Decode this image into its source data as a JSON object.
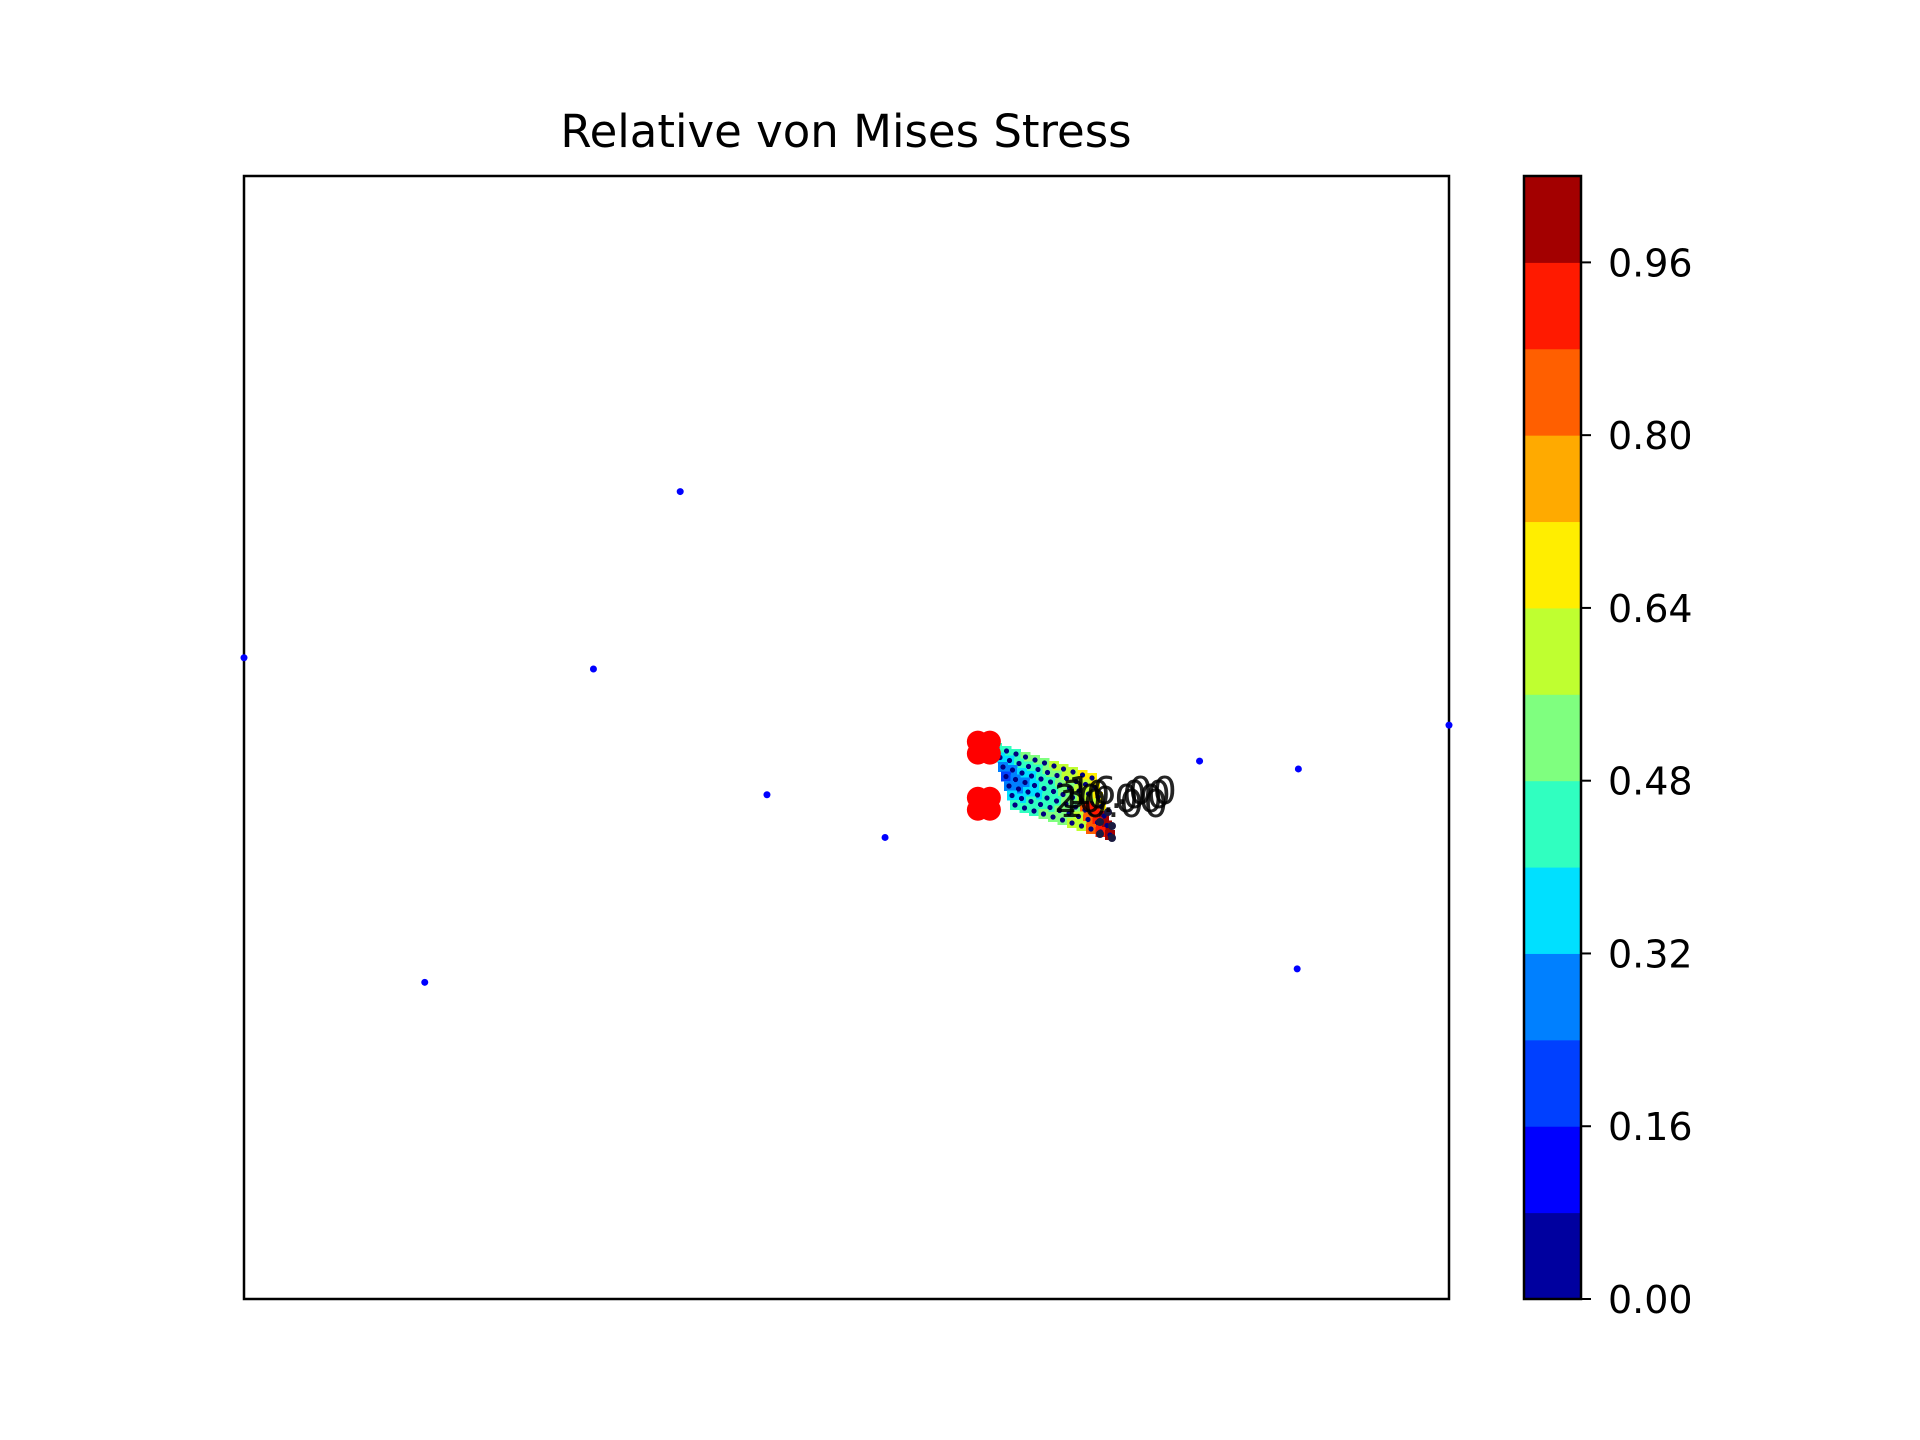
{
  "chart_data": {
    "type": "scatter",
    "title": "Relative von Mises Stress",
    "xlabel": "",
    "ylabel": "",
    "axes_ticks_visible": false,
    "grid": false,
    "colormap": "jet",
    "colorbar": {
      "range": [
        0.0,
        1.04
      ],
      "levels": 13,
      "tick_labels": [
        "0.00",
        "0.16",
        "0.32",
        "0.48",
        "0.64",
        "0.80",
        "0.96"
      ],
      "band_colors": [
        "#00009f",
        "#0000ff",
        "#0040ff",
        "#0080ff",
        "#00e0ff",
        "#30ffc0",
        "#7fff7f",
        "#bfff30",
        "#ffee00",
        "#ffaa00",
        "#ff5f00",
        "#ff1a00",
        "#a30000"
      ]
    },
    "outer_nodes": [
      {
        "x": 0.0,
        "y": 0.571
      },
      {
        "x": 0.29,
        "y": 0.561
      },
      {
        "x": 0.362,
        "y": 0.719
      },
      {
        "x": 0.434,
        "y": 0.449
      },
      {
        "x": 0.532,
        "y": 0.411
      },
      {
        "x": 0.15,
        "y": 0.282
      },
      {
        "x": 0.793,
        "y": 0.479
      },
      {
        "x": 0.875,
        "y": 0.472
      },
      {
        "x": 0.874,
        "y": 0.294
      },
      {
        "x": 1.0,
        "y": 0.511
      }
    ],
    "support_markers": [
      {
        "x": 0.614,
        "y": 0.491
      },
      {
        "x": 0.614,
        "y": 0.441
      }
    ],
    "stress_grid": {
      "rows": 7,
      "cols": 11,
      "stress_range": [
        0.0,
        1.0
      ],
      "note": "dense cluster of nodes coloured by relative stress"
    },
    "overlapping_labels": [
      "30.00",
      "20.00",
      "16.00",
      "10.00"
    ],
    "colors": {
      "outer_nodes": "#0000ff",
      "support_markers": "#ff0000"
    }
  }
}
